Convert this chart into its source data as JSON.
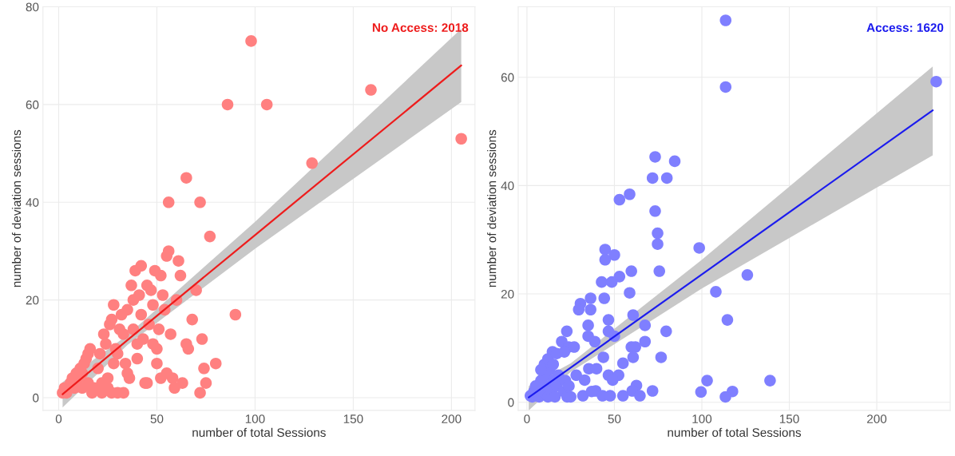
{
  "chart_data": [
    {
      "type": "scatter",
      "xlabel": "number of total Sessions",
      "ylabel": "number of deviation sessions",
      "annotations": [
        "No Access: 2018"
      ],
      "xlim": [
        -8,
        212
      ],
      "ylim": [
        -2.6,
        80
      ],
      "xticks": [
        0,
        50,
        100,
        150,
        200
      ],
      "yticks": [
        0,
        20,
        40,
        60,
        80
      ],
      "grid": true,
      "series": [
        {
          "marker": "circle",
          "color": "#ff8080",
          "x": [
            2,
            3,
            4,
            6,
            7,
            8,
            9,
            10,
            11,
            12,
            13,
            14,
            15,
            16,
            17,
            18,
            20,
            21,
            22,
            23,
            24,
            25,
            26,
            27,
            28,
            29,
            30,
            31,
            32,
            33,
            34,
            35,
            36,
            37,
            38,
            39,
            40,
            41,
            42,
            43,
            44,
            45,
            46,
            47,
            48,
            49,
            50,
            51,
            52,
            53,
            54,
            55,
            56,
            57,
            58,
            59,
            60,
            61,
            62,
            63,
            65,
            66,
            68,
            70,
            72,
            73,
            75,
            74,
            80,
            56,
            65,
            72,
            77,
            90,
            86,
            98,
            106,
            129,
            159,
            205,
            30,
            35,
            40,
            45,
            50,
            55,
            25,
            12,
            15,
            28,
            38,
            42,
            48,
            52,
            27,
            22,
            33
          ],
          "values": [
            1,
            2,
            1,
            3,
            4,
            2,
            5,
            4,
            6,
            5,
            7,
            8,
            9,
            10,
            1,
            2,
            6,
            9,
            3,
            13,
            11,
            2,
            15,
            16,
            19,
            10,
            1,
            14,
            17,
            1,
            7,
            18,
            4,
            23,
            20,
            26,
            8,
            21,
            27,
            12,
            3,
            23,
            15,
            22,
            19,
            26,
            10,
            14,
            25,
            21,
            18,
            29,
            30,
            13,
            4,
            2,
            20,
            28,
            25,
            3,
            11,
            10,
            16,
            22,
            1,
            12,
            3,
            6,
            7,
            40,
            45,
            40,
            33,
            17,
            60,
            73,
            60,
            48,
            63,
            53,
            9,
            5,
            11,
            3,
            7,
            5,
            4,
            2,
            3,
            7,
            14,
            17,
            11,
            4,
            1,
            1,
            13
          ]
        },
        {
          "type": "line",
          "color": "#ee1c1c",
          "x": [
            2,
            35,
            100,
            205
          ],
          "values": [
            0.7,
            11.8,
            33.3,
            68.0
          ],
          "lower": [
            -2.0,
            10.8,
            30.5,
            60.5
          ],
          "upper": [
            3.2,
            12.8,
            36.0,
            75.5
          ]
        }
      ]
    },
    {
      "type": "scatter",
      "xlabel": "number of total Sessions",
      "ylabel": "number of deviation sessions",
      "annotations": [
        "Access: 1620"
      ],
      "xlim": [
        -5,
        242
      ],
      "ylim": [
        -1.5,
        73
      ],
      "xticks": [
        0,
        50,
        100,
        150,
        200
      ],
      "yticks": [
        0,
        20,
        40,
        60
      ],
      "grid": true,
      "series": [
        {
          "marker": "circle",
          "color": "#7f7fff",
          "x": [
            113.6,
            113.6,
            234,
            98.5,
            108,
            126,
            114.6,
            139,
            99.5,
            103,
            117.5,
            113.5,
            73.3,
            84.5,
            71.8,
            80,
            52.9,
            58.7,
            73.3,
            74.7,
            74.7,
            75.7,
            44.7,
            50,
            44.7,
            59.7,
            52.9,
            42.7,
            48.5,
            58.7,
            44.2,
            36.4,
            30.6,
            36.4,
            29.6,
            60.7,
            35,
            46.6,
            22.8,
            46.6,
            67.5,
            79.6,
            35,
            50,
            38.8,
            19.9,
            67.5,
            59.7,
            62,
            23.8,
            27,
            14.6,
            21.4,
            43.7,
            60.7,
            76.7,
            54.9,
            35.4,
            39.8,
            28.2,
            46.6,
            52.4,
            33,
            49,
            62.6,
            39.3,
            60.2,
            71.8,
            32,
            43.2,
            54.9,
            64.6,
            47.6,
            37,
            2,
            3,
            4,
            7,
            8,
            9,
            10,
            11,
            12,
            13,
            14,
            15,
            16,
            17,
            21,
            22,
            23,
            24,
            25,
            10,
            12,
            15,
            17,
            8,
            5,
            18
          ],
          "values": [
            70.5,
            58.2,
            59.2,
            28.5,
            20.4,
            23.5,
            15.2,
            4,
            1.9,
            4,
            2,
            1,
            45.3,
            44.5,
            41.4,
            41.4,
            37.4,
            38.4,
            35.3,
            31.2,
            29.2,
            24.2,
            28.2,
            27.2,
            26.3,
            24.2,
            23.2,
            22.2,
            22.2,
            20.2,
            19.2,
            19.2,
            18.2,
            17.1,
            17.1,
            16.1,
            14.2,
            15.2,
            13.1,
            13.1,
            14.2,
            13.1,
            12.2,
            12.2,
            11.2,
            11.2,
            11.2,
            10.2,
            10.2,
            10.2,
            10.2,
            9.3,
            9.3,
            8.3,
            8.3,
            8.3,
            7.2,
            6.2,
            6.2,
            5,
            5,
            5,
            4.1,
            4.1,
            3.1,
            2.1,
            2.1,
            2.1,
            1.2,
            1.2,
            1.2,
            1.2,
            1.2,
            2,
            1.2,
            1,
            2,
            1,
            4,
            2,
            5,
            3,
            1,
            6,
            2,
            4,
            1,
            3,
            2,
            4,
            1,
            3,
            1,
            7,
            8,
            7,
            9,
            6,
            3,
            5
          ]
        },
        {
          "type": "line",
          "color": "#1c1cee",
          "x": [
            1,
            25,
            100,
            232
          ],
          "values": [
            0.9,
            6.4,
            23.6,
            53.9
          ],
          "lower": [
            -1.5,
            5.6,
            21.0,
            45.6
          ],
          "upper": [
            3.0,
            7.2,
            26.3,
            62.0
          ]
        }
      ]
    }
  ]
}
